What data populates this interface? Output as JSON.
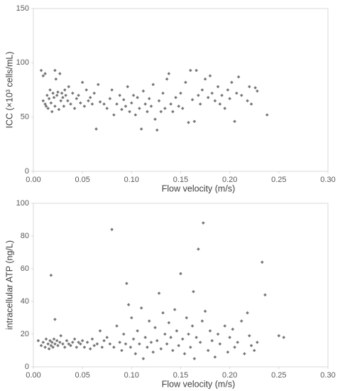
{
  "chart_data": [
    {
      "type": "scatter",
      "xlabel": "Flow velocity (m/s)",
      "ylabel": "ICC (×10³ cells/mL)",
      "color": "#777777",
      "xlim": [
        0,
        0.3
      ],
      "ylim": [
        0,
        150
      ],
      "xticks": [
        {
          "value": 0,
          "label": "0.00"
        },
        {
          "value": 0.05,
          "label": "0.05"
        },
        {
          "value": 0.1,
          "label": "0.10"
        },
        {
          "value": 0.15,
          "label": "0.15"
        },
        {
          "value": 0.2,
          "label": "0.20"
        },
        {
          "value": 0.25,
          "label": "0.25"
        },
        {
          "value": 0.3,
          "label": "0.30"
        }
      ],
      "yticks": [
        0,
        50,
        100,
        150
      ],
      "x": [
        0.008,
        0.01,
        0.012,
        0.01,
        0.012,
        0.013,
        0.014,
        0.015,
        0.016,
        0.017,
        0.018,
        0.019,
        0.02,
        0.021,
        0.022,
        0.022,
        0.023,
        0.024,
        0.025,
        0.026,
        0.027,
        0.028,
        0.029,
        0.03,
        0.031,
        0.032,
        0.033,
        0.035,
        0.036,
        0.038,
        0.04,
        0.042,
        0.044,
        0.046,
        0.048,
        0.05,
        0.052,
        0.054,
        0.056,
        0.058,
        0.06,
        0.062,
        0.064,
        0.066,
        0.068,
        0.072,
        0.075,
        0.078,
        0.08,
        0.082,
        0.085,
        0.088,
        0.09,
        0.092,
        0.094,
        0.096,
        0.098,
        0.1,
        0.102,
        0.104,
        0.106,
        0.108,
        0.11,
        0.112,
        0.114,
        0.116,
        0.118,
        0.12,
        0.122,
        0.124,
        0.126,
        0.128,
        0.13,
        0.132,
        0.134,
        0.136,
        0.138,
        0.14,
        0.142,
        0.145,
        0.148,
        0.15,
        0.152,
        0.155,
        0.158,
        0.16,
        0.162,
        0.164,
        0.166,
        0.168,
        0.17,
        0.172,
        0.175,
        0.178,
        0.18,
        0.182,
        0.185,
        0.188,
        0.19,
        0.192,
        0.195,
        0.198,
        0.2,
        0.202,
        0.205,
        0.207,
        0.209,
        0.212,
        0.218,
        0.22,
        0.222,
        0.226,
        0.228,
        0.238
      ],
      "values": [
        93,
        88,
        90,
        65,
        62,
        60,
        70,
        58,
        67,
        75,
        63,
        55,
        72,
        68,
        93,
        60,
        85,
        70,
        73,
        57,
        90,
        65,
        72,
        68,
        60,
        75,
        70,
        65,
        78,
        62,
        72,
        58,
        67,
        70,
        63,
        82,
        60,
        75,
        65,
        68,
        62,
        72,
        39,
        80,
        64,
        62,
        58,
        67,
        75,
        52,
        62,
        70,
        57,
        66,
        60,
        78,
        55,
        63,
        70,
        52,
        68,
        58,
        39,
        74,
        62,
        55,
        67,
        60,
        80,
        48,
        38,
        65,
        55,
        72,
        58,
        85,
        90,
        62,
        55,
        68,
        60,
        72,
        58,
        82,
        45,
        93,
        66,
        46,
        93,
        70,
        62,
        75,
        85,
        68,
        88,
        72,
        65,
        78,
        62,
        70,
        58,
        75,
        67,
        82,
        46,
        72,
        87,
        70,
        65,
        78,
        62,
        77,
        74,
        52
      ]
    },
    {
      "type": "scatter",
      "xlabel": "Flow velocity (m/s)",
      "ylabel": "intracellular ATP (ng/L)",
      "color": "#777777",
      "xlim": [
        0,
        0.3
      ],
      "ylim": [
        0,
        100
      ],
      "xticks": [
        {
          "value": 0,
          "label": "0.00"
        },
        {
          "value": 0.05,
          "label": "0.05"
        },
        {
          "value": 0.1,
          "label": "0.10"
        },
        {
          "value": 0.15,
          "label": "0.15"
        },
        {
          "value": 0.2,
          "label": "0.20"
        },
        {
          "value": 0.25,
          "label": "0.25"
        },
        {
          "value": 0.3,
          "label": "0.30"
        }
      ],
      "yticks": [
        0,
        20,
        40,
        60,
        80,
        100
      ],
      "x": [
        0.005,
        0.008,
        0.01,
        0.012,
        0.013,
        0.015,
        0.016,
        0.017,
        0.018,
        0.018,
        0.019,
        0.02,
        0.021,
        0.022,
        0.022,
        0.024,
        0.025,
        0.027,
        0.028,
        0.03,
        0.032,
        0.034,
        0.036,
        0.038,
        0.04,
        0.042,
        0.044,
        0.046,
        0.048,
        0.05,
        0.052,
        0.055,
        0.058,
        0.06,
        0.062,
        0.065,
        0.068,
        0.07,
        0.072,
        0.075,
        0.078,
        0.08,
        0.082,
        0.085,
        0.088,
        0.09,
        0.092,
        0.094,
        0.095,
        0.097,
        0.099,
        0.1,
        0.102,
        0.104,
        0.106,
        0.108,
        0.11,
        0.112,
        0.114,
        0.116,
        0.118,
        0.12,
        0.122,
        0.124,
        0.126,
        0.128,
        0.13,
        0.132,
        0.134,
        0.136,
        0.138,
        0.14,
        0.142,
        0.144,
        0.146,
        0.148,
        0.15,
        0.152,
        0.154,
        0.156,
        0.158,
        0.16,
        0.162,
        0.163,
        0.164,
        0.166,
        0.168,
        0.17,
        0.172,
        0.173,
        0.175,
        0.178,
        0.18,
        0.182,
        0.185,
        0.188,
        0.19,
        0.195,
        0.198,
        0.2,
        0.203,
        0.205,
        0.208,
        0.212,
        0.215,
        0.218,
        0.22,
        0.222,
        0.225,
        0.228,
        0.233,
        0.236,
        0.25,
        0.255
      ],
      "values": [
        16,
        13,
        15,
        12,
        17,
        14,
        11,
        16,
        56,
        13,
        15,
        12,
        17,
        29,
        14,
        16,
        13,
        15,
        19,
        14,
        12,
        16,
        14,
        13,
        15,
        17,
        12,
        15,
        14,
        16,
        12,
        15,
        11,
        17,
        13,
        14,
        22,
        12,
        16,
        18,
        14,
        84,
        12,
        25,
        15,
        10,
        20,
        14,
        51,
        38,
        12,
        30,
        17,
        8,
        22,
        14,
        36,
        5,
        18,
        12,
        28,
        15,
        9,
        24,
        16,
        45,
        11,
        33,
        20,
        14,
        27,
        18,
        10,
        35,
        22,
        13,
        57,
        17,
        8,
        30,
        20,
        12,
        25,
        46,
        5,
        18,
        72,
        15,
        28,
        88,
        34,
        10,
        22,
        16,
        6,
        20,
        14,
        25,
        9,
        18,
        23,
        12,
        15,
        28,
        8,
        33,
        19,
        13,
        10,
        15,
        64,
        44,
        19,
        18
      ]
    }
  ]
}
